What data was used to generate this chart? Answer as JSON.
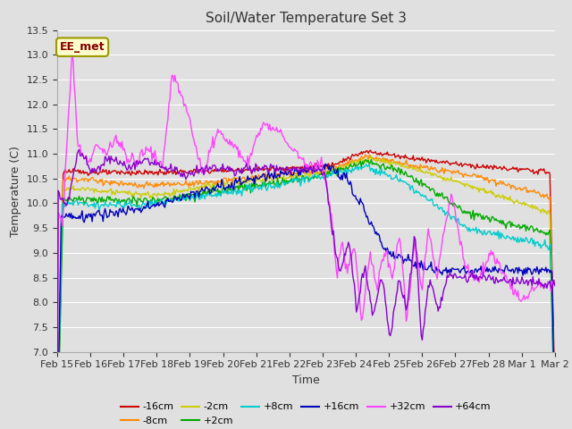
{
  "title": "Soil/Water Temperature Set 3",
  "xlabel": "Time",
  "ylabel": "Temperature (C)",
  "ylim": [
    7.0,
    13.5
  ],
  "yticks": [
    7.0,
    7.5,
    8.0,
    8.5,
    9.0,
    9.5,
    10.0,
    10.5,
    11.0,
    11.5,
    12.0,
    12.5,
    13.0,
    13.5
  ],
  "xtick_labels": [
    "Feb 15",
    "Feb 16",
    "Feb 17",
    "Feb 18",
    "Feb 19",
    "Feb 20",
    "Feb 21",
    "Feb 22",
    "Feb 23",
    "Feb 24",
    "Feb 25",
    "Feb 26",
    "Feb 27",
    "Feb 28",
    "Mar 1",
    "Mar 2"
  ],
  "background_color": "#e0e0e0",
  "plot_bg_color": "#e0e0e0",
  "grid_color": "#ffffff",
  "series_colors": {
    "-16cm": "#cc0000",
    "-8cm": "#ff8800",
    "-2cm": "#cccc00",
    "+2cm": "#00aa00",
    "+8cm": "#00cccc",
    "+16cm": "#0000bb",
    "+32cm": "#ff44ff",
    "+64cm": "#8800cc"
  },
  "annotation_text": "EE_met",
  "annotation_bg": "#ffffcc",
  "annotation_border": "#999900",
  "annotation_text_color": "#880000"
}
